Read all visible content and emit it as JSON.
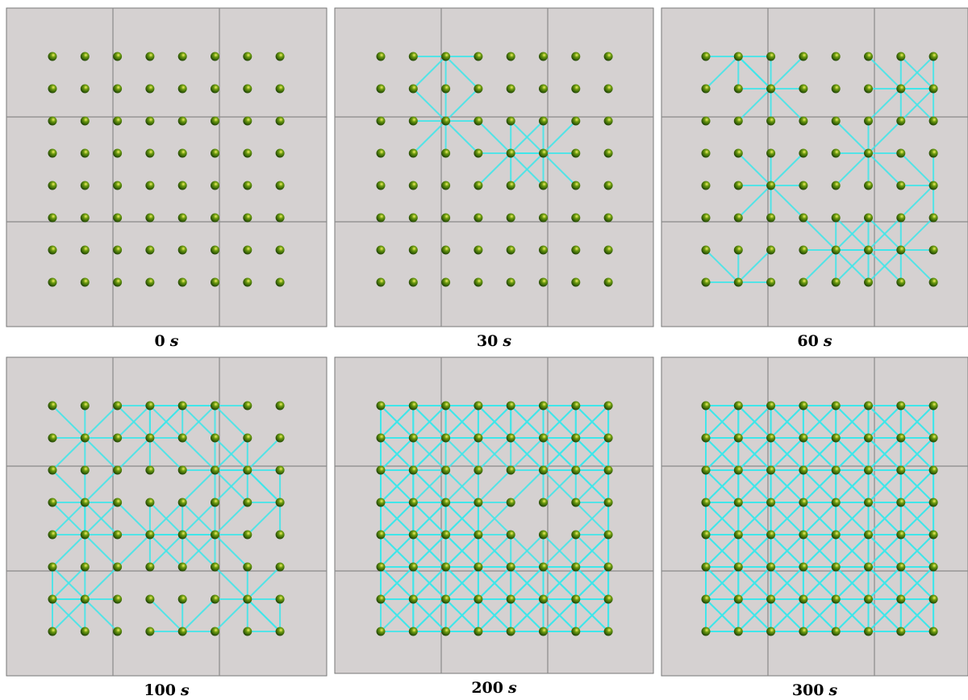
{
  "panels": [
    {
      "time": "0",
      "unit": "s"
    },
    {
      "time": "30",
      "unit": "s"
    },
    {
      "time": "60",
      "unit": "s"
    },
    {
      "time": "100",
      "unit": "s"
    },
    {
      "time": "200",
      "unit": "s"
    },
    {
      "time": "300",
      "unit": "s"
    }
  ]
}
